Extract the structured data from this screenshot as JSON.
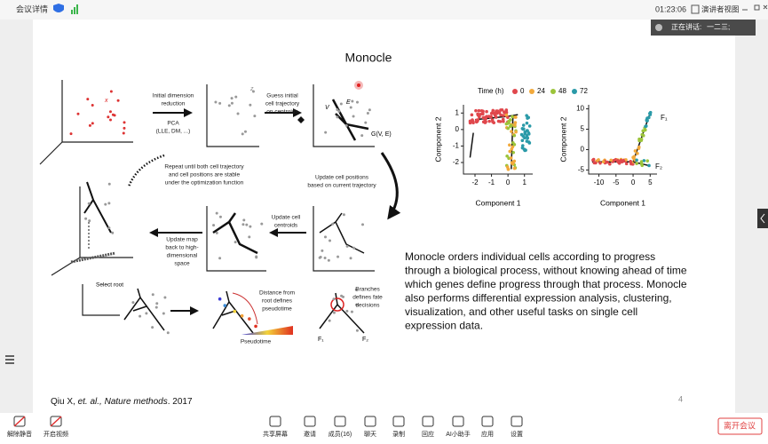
{
  "top_bar": {
    "meeting_info": "会议详情",
    "timer": "01:23:06",
    "view_mode": "演讲者视图"
  },
  "speaking": {
    "label": "正在讲话:",
    "names": "一二三;"
  },
  "slide": {
    "title": "Monocle",
    "diagram": {
      "x_axis": "x",
      "z_axis": "z",
      "step1": [
        "Initial dimension",
        "reduction"
      ],
      "step1_method": [
        "PCA",
        "(LLE, DM, ...)"
      ],
      "step2": [
        "Guess initial",
        "cell trajectory",
        "on centroids"
      ],
      "graph": "G(V, E)",
      "vertex": "V",
      "edge": "E",
      "repeat": [
        "Repeat until both cell trajectory",
        "and cell positions are stable",
        "under the optimization function"
      ],
      "update_positions": [
        "Update cell positions",
        "based on current trajectory"
      ],
      "update_centroids": [
        "Update cell",
        "centroids"
      ],
      "update_map": [
        "Update map",
        "back to high-",
        "dimensional",
        "space"
      ],
      "select_root": "Select root",
      "distance": [
        "Distance from",
        "root defines",
        "pseudotime"
      ],
      "pseudotime": "Pseudotime",
      "branches": [
        "Branches",
        "defines fate",
        "decisions"
      ],
      "fate1": "F₁",
      "fate2": "F₂"
    },
    "plots": {
      "legend": {
        "title": "Time (h)",
        "items": [
          {
            "label": "0",
            "color": "#e0474c"
          },
          {
            "label": "24",
            "color": "#f2a93b"
          },
          {
            "label": "48",
            "color": "#9cc43a"
          },
          {
            "label": "72",
            "color": "#2a9aa8"
          }
        ]
      },
      "left": {
        "x_label": "Component 1",
        "y_label": "Component 2",
        "xticks": [
          -2,
          -1,
          0,
          1
        ],
        "yticks": [
          1,
          0,
          -1,
          -2
        ],
        "xlim": [
          -2.7,
          1.5
        ],
        "ylim": [
          -2.7,
          1.5
        ]
      },
      "right": {
        "x_label": "Component 1",
        "y_label": "Component 2",
        "xticks": [
          -10,
          -5,
          0,
          5
        ],
        "yticks": [
          10,
          5,
          0,
          -5
        ],
        "xlim": [
          -13,
          7
        ],
        "ylim": [
          -6,
          11
        ],
        "fate1": "F₁",
        "fate2": "F₂"
      }
    },
    "description": [
      "Monocle orders individual cells according to progress",
      "through a biological process, without knowing ahead of time",
      "which genes define progress through that process. Monocle",
      "also performs differential expression analysis, clustering,",
      "visualization, and other useful tasks on single cell",
      "expression data."
    ],
    "citation": {
      "authors": "Qiu X, ",
      "journal": "et. al., Nature methods",
      "year": ". 2017"
    },
    "page_number": "4"
  },
  "toolbar": {
    "left": [
      "解除静音",
      "开启视频"
    ],
    "center": [
      "共享屏幕",
      "邀请",
      "成员(16)",
      "聊天",
      "录制",
      "回应",
      "AI小助手",
      "应用",
      "设置"
    ],
    "leave": "离开会议"
  }
}
